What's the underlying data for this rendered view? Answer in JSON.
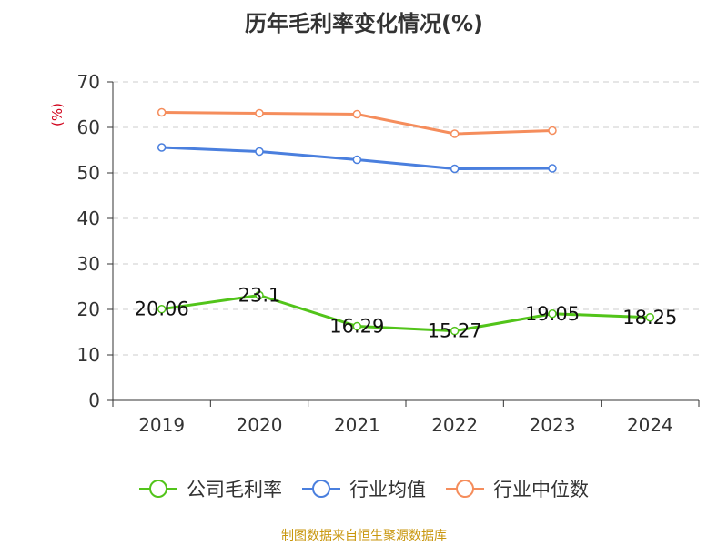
{
  "chart_data": {
    "type": "line",
    "title": "历年毛利率变化情况(%)",
    "ylabel": "(%)",
    "categories": [
      "2019",
      "2020",
      "2021",
      "2022",
      "2023",
      "2024"
    ],
    "ylim": [
      0,
      70
    ],
    "yticks": [
      0,
      10,
      20,
      30,
      40,
      50,
      60,
      70
    ],
    "grid": true,
    "legend_position": "bottom",
    "series": [
      {
        "name": "公司毛利率",
        "color": "#52c41a",
        "values": [
          20.06,
          23.1,
          16.29,
          15.27,
          19.05,
          18.25
        ],
        "labels": [
          "20.06",
          "23.1",
          "16.29",
          "15.27",
          "19.05",
          "18.25"
        ]
      },
      {
        "name": "行业均值",
        "color": "#4a7fde",
        "values": [
          55.6,
          54.7,
          52.9,
          50.9,
          51.0,
          null
        ]
      },
      {
        "name": "行业中位数",
        "color": "#f58d5c",
        "values": [
          63.3,
          63.1,
          62.9,
          58.6,
          59.3,
          null
        ]
      }
    ]
  },
  "source_note": "制图数据来自恒生聚源数据库"
}
